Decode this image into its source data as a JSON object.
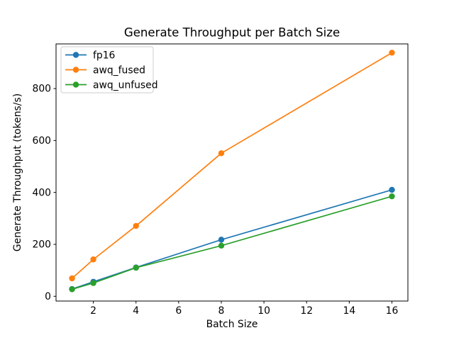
{
  "chart_data": {
    "type": "line",
    "title": "Generate Throughput per Batch Size",
    "xlabel": "Batch Size",
    "ylabel": "Generate Throughput (tokens/s)",
    "x": [
      1,
      2,
      4,
      8,
      16
    ],
    "series": [
      {
        "name": "fp16",
        "color": "#1f77b4",
        "values": [
          28,
          56,
          111,
          218,
          410
        ]
      },
      {
        "name": "awq_fused",
        "color": "#ff7f0e",
        "values": [
          69,
          142,
          271,
          551,
          938
        ]
      },
      {
        "name": "awq_unfused",
        "color": "#2ca02c",
        "values": [
          27,
          51,
          110,
          195,
          385
        ]
      }
    ],
    "xticks": [
      2,
      4,
      6,
      8,
      10,
      12,
      14,
      16
    ],
    "yticks": [
      0,
      200,
      400,
      600,
      800
    ],
    "xlim": [
      0.25,
      16.75
    ],
    "ylim": [
      -18.3,
      972
    ],
    "grid": false,
    "legend_position": "upper left",
    "marker": "circle",
    "axis_color": "#000000",
    "legend_border_color": "#cccccc",
    "background_color": "#ffffff"
  }
}
